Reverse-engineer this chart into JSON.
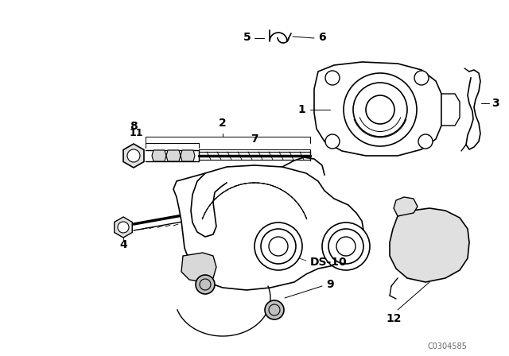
{
  "bg_color": "#ffffff",
  "line_color": "#000000",
  "watermark": "C0304585",
  "fig_w": 6.4,
  "fig_h": 4.48,
  "dpi": 100
}
